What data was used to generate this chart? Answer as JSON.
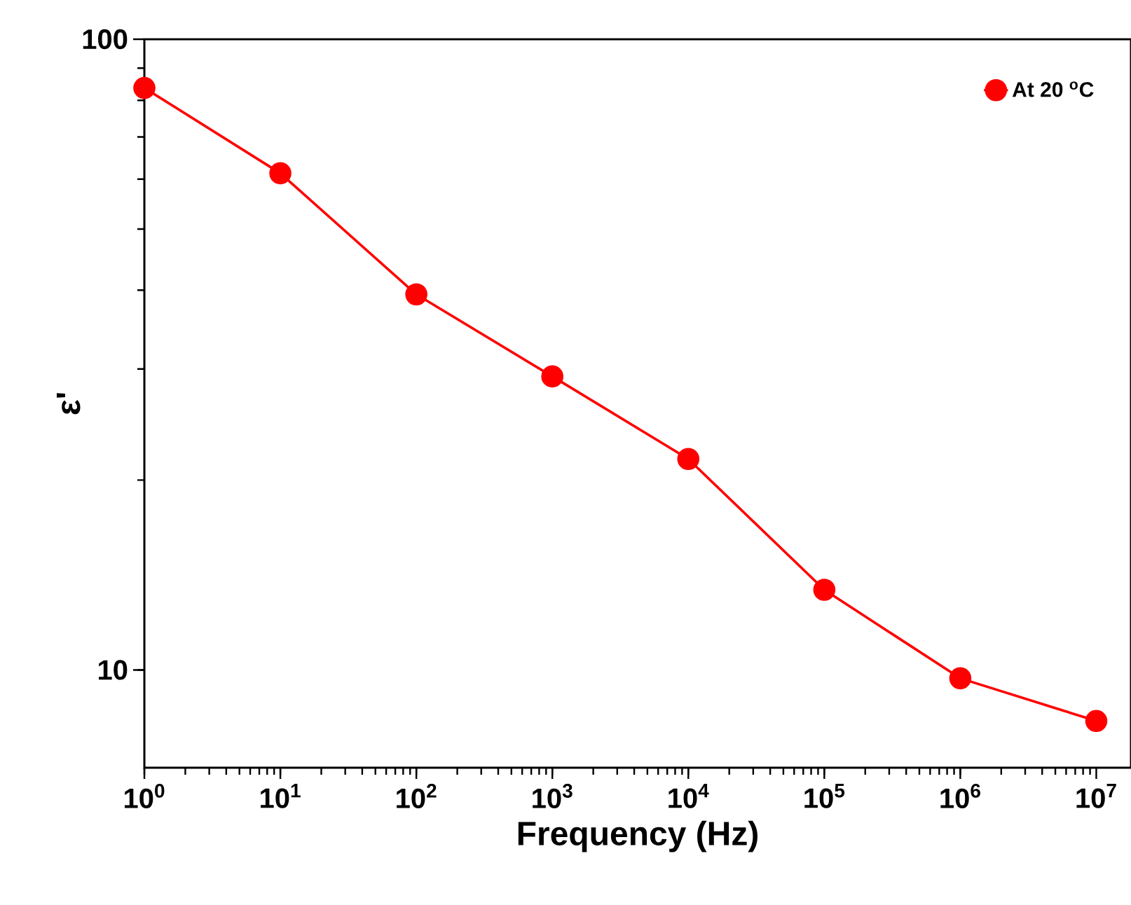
{
  "chart_data": {
    "type": "line",
    "xlabel": "Frequency (Hz)",
    "ylabel": "ε'",
    "log": "xy",
    "x": [
      1,
      10,
      100,
      1000,
      10000,
      100000,
      1000000,
      10000000
    ],
    "series": [
      {
        "name": "At 20 $^{o}$C",
        "color": "#ff0000",
        "values": [
          83.7,
          61.3,
          39.4,
          29.2,
          21.6,
          13.4,
          9.7,
          8.3
        ]
      }
    ],
    "xlim": [
      1,
      18000000
    ],
    "ylim": [
      7,
      100
    ],
    "xticks": [
      {
        "value": 1,
        "label": "10$^{0}$"
      },
      {
        "value": 10,
        "label": "10$^{1}$"
      },
      {
        "value": 100,
        "label": "10$^{2}$"
      },
      {
        "value": 1000,
        "label": "10$^{3}$"
      },
      {
        "value": 10000,
        "label": "10$^{4}$"
      },
      {
        "value": 100000,
        "label": "10$^{5}$"
      },
      {
        "value": 1000000,
        "label": "10$^{6}$"
      },
      {
        "value": 10000000,
        "label": "10$^{7}$"
      }
    ],
    "yticks": [
      10,
      100
    ],
    "grid": false,
    "legend": "top right",
    "marker": "circle",
    "line_style": "solid"
  }
}
